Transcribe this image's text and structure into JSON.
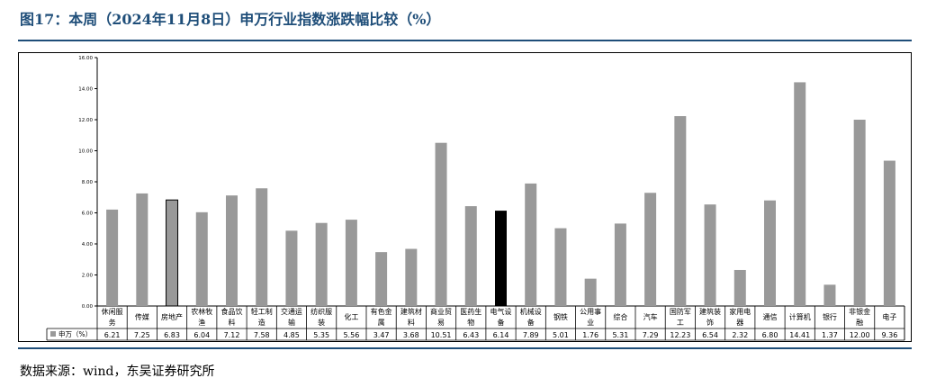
{
  "figure": {
    "title": "图17：本周（2024年11月8日）申万行业指数涨跌幅比较（%）",
    "source": "数据来源：wind，东吴证券研究所"
  },
  "chart_data": {
    "type": "bar",
    "title": "",
    "xlabel": "",
    "ylabel": "",
    "ylim": [
      0,
      16
    ],
    "yticks": [
      "0.00",
      "2.00",
      "4.00",
      "6.00",
      "8.00",
      "10.00",
      "12.00",
      "14.00",
      "16.00"
    ],
    "grid": false,
    "legend": "bottom-left",
    "categories": [
      [
        "休闲服",
        "务"
      ],
      [
        "传媒"
      ],
      [
        "房地产"
      ],
      [
        "农林牧",
        "渔"
      ],
      [
        "食品饮",
        "料"
      ],
      [
        "轻工制",
        "造"
      ],
      [
        "交通运",
        "输"
      ],
      [
        "纺织服",
        "装"
      ],
      [
        "化工"
      ],
      [
        "有色金",
        "属"
      ],
      [
        "建筑材",
        "料"
      ],
      [
        "商业贸",
        "易"
      ],
      [
        "医药生",
        "物"
      ],
      [
        "电气设",
        "备"
      ],
      [
        "机械设",
        "备"
      ],
      [
        "钢铁"
      ],
      [
        "公用事",
        "业"
      ],
      [
        "综合"
      ],
      [
        "汽车"
      ],
      [
        "国防军",
        "工"
      ],
      [
        "建筑装",
        "饰"
      ],
      [
        "家用电",
        "器"
      ],
      [
        "通信"
      ],
      [
        "计算机"
      ],
      [
        "银行"
      ],
      [
        "非银金",
        "融"
      ],
      [
        "电子"
      ]
    ],
    "series": [
      {
        "name": "申万（%）",
        "values": [
          6.21,
          7.25,
          6.83,
          6.04,
          7.12,
          7.58,
          4.85,
          5.35,
          5.56,
          3.47,
          3.68,
          10.51,
          6.43,
          6.14,
          7.89,
          5.01,
          1.76,
          5.31,
          7.29,
          12.23,
          6.54,
          2.32,
          6.8,
          14.41,
          1.37,
          12.0,
          9.36
        ],
        "labels": [
          "6.21",
          "7.25",
          "6.83",
          "6.04",
          "7.12",
          "7.58",
          "4.85",
          "5.35",
          "5.56",
          "3.47",
          "3.68",
          "10.51",
          "6.43",
          "6.14",
          "7.89",
          "5.01",
          "1.76",
          "5.31",
          "7.29",
          "12.23",
          "6.54",
          "2.32",
          "6.80",
          "14.41",
          "1.37",
          "12.00",
          "9.36"
        ]
      }
    ],
    "colors": {
      "default": "#999999",
      "highlight_outline": "#000000",
      "highlight_black": "#000000"
    },
    "highlight": {
      "outlined": [
        2
      ],
      "black": [
        13
      ]
    }
  }
}
